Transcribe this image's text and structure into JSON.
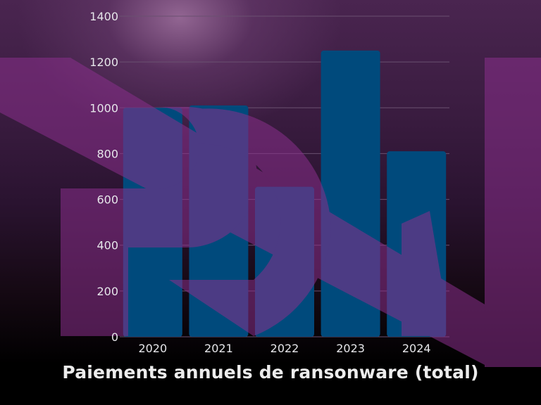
{
  "chart_data": {
    "type": "bar",
    "title": "Paiements annuels de ransonware (total)",
    "xlabel": "",
    "ylabel": "",
    "categories": [
      "2020",
      "2021",
      "2022",
      "2023",
      "2024"
    ],
    "values": [
      1000,
      1010,
      655,
      1250,
      810
    ],
    "ylim": [
      0,
      1400
    ],
    "yticks": [
      0,
      200,
      400,
      600,
      800,
      1000,
      1200,
      1400
    ],
    "grid": true,
    "legend": "none"
  },
  "colors": {
    "bar": "#004a7c",
    "grid": "#6a5070",
    "watermark": "#8a2f8c",
    "text": "#e6e6ea"
  },
  "watermark": {
    "icon": "rdn-logo-watermark"
  }
}
